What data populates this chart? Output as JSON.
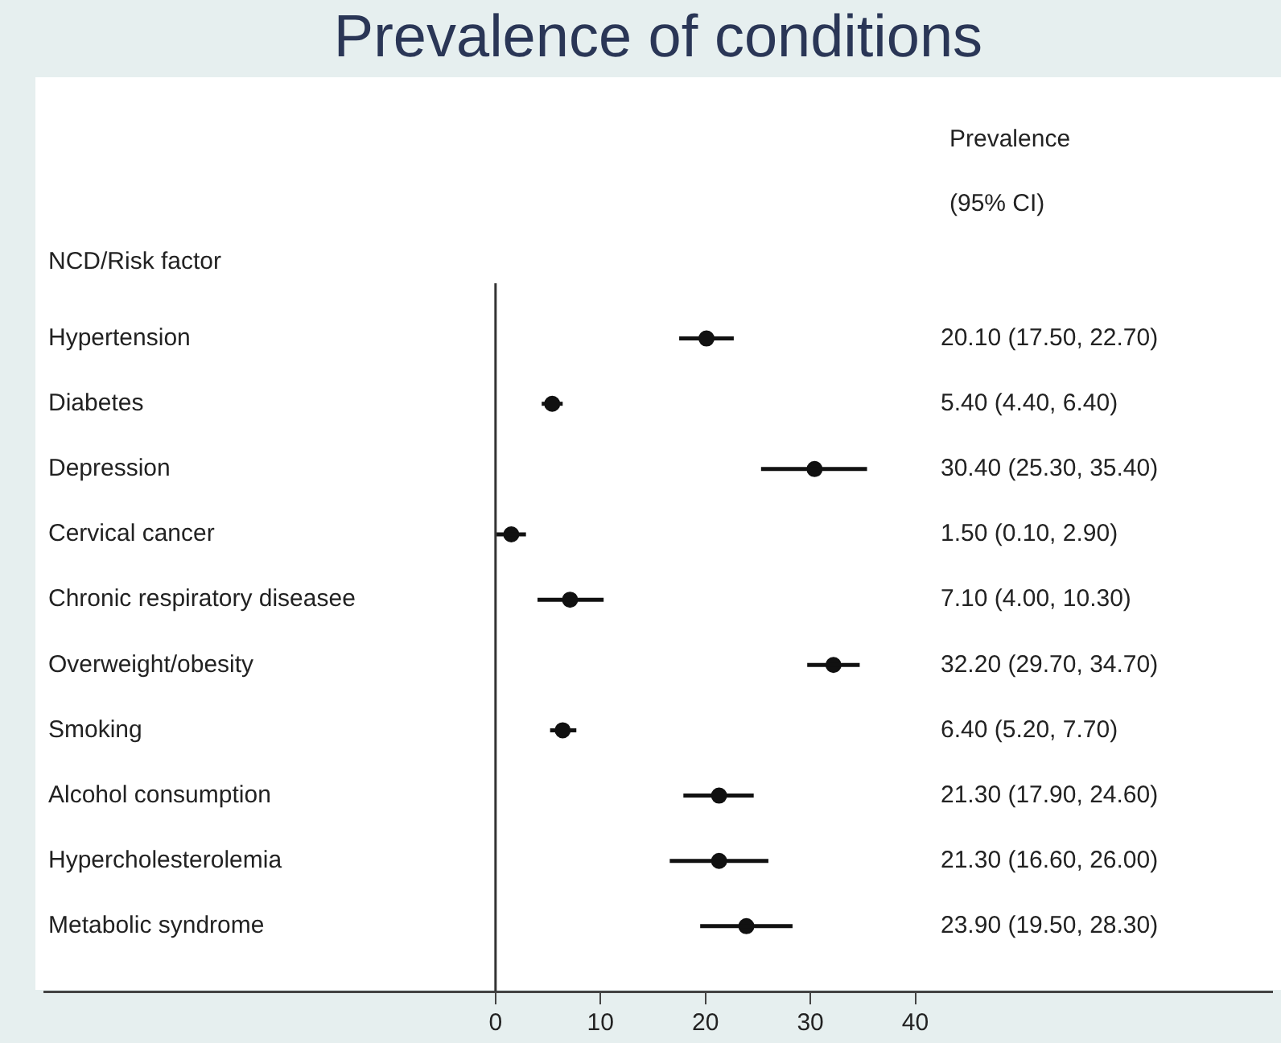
{
  "chart_data": {
    "type": "scatter",
    "orientation": "horizontal",
    "title": "Prevalence of conditions",
    "ylabel": "NCD/Risk factor",
    "annotations": [
      "Prevalence",
      "(95% CI)",
      "20.10 (17.50, 22.70)",
      "5.40 (4.40, 6.40)",
      "30.40 (25.30, 35.40)",
      "1.50 (0.10, 2.90)",
      "7.10 (4.00, 10.30)",
      "32.20 (29.70, 34.70)",
      "6.40 (5.20, 7.70)",
      "21.30 (17.90, 24.60)",
      "21.30 (16.60, 26.00)",
      "23.90 (19.50, 28.30)"
    ],
    "categories": [
      "Hypertension",
      "Diabetes",
      "Depression",
      "Cervical cancer",
      "Chronic respiratory diseasee",
      "Overweight/obesity",
      "Smoking",
      "Alcohol consumption",
      "Hypercholesterolemia",
      "Metabolic syndrome"
    ],
    "values": [
      20.1,
      5.4,
      30.4,
      1.5,
      7.1,
      32.2,
      6.4,
      21.3,
      21.3,
      23.9
    ],
    "errors": [
      [
        17.5,
        22.7
      ],
      [
        4.4,
        6.4
      ],
      [
        25.3,
        35.4
      ],
      [
        0.1,
        2.9
      ],
      [
        4.0,
        10.3
      ],
      [
        29.7,
        34.7
      ],
      [
        5.2,
        7.7
      ],
      [
        17.9,
        24.6
      ],
      [
        16.6,
        26.0
      ],
      [
        19.5,
        28.3
      ]
    ],
    "color": "#111111",
    "marker": "circle",
    "grid": false,
    "legend": false,
    "xlim": [
      -43,
      74
    ],
    "xticks": [
      0,
      10,
      20,
      30,
      40
    ],
    "ref_lines": [
      {
        "axis": "x",
        "value": 0,
        "color": "#333333"
      }
    ]
  }
}
